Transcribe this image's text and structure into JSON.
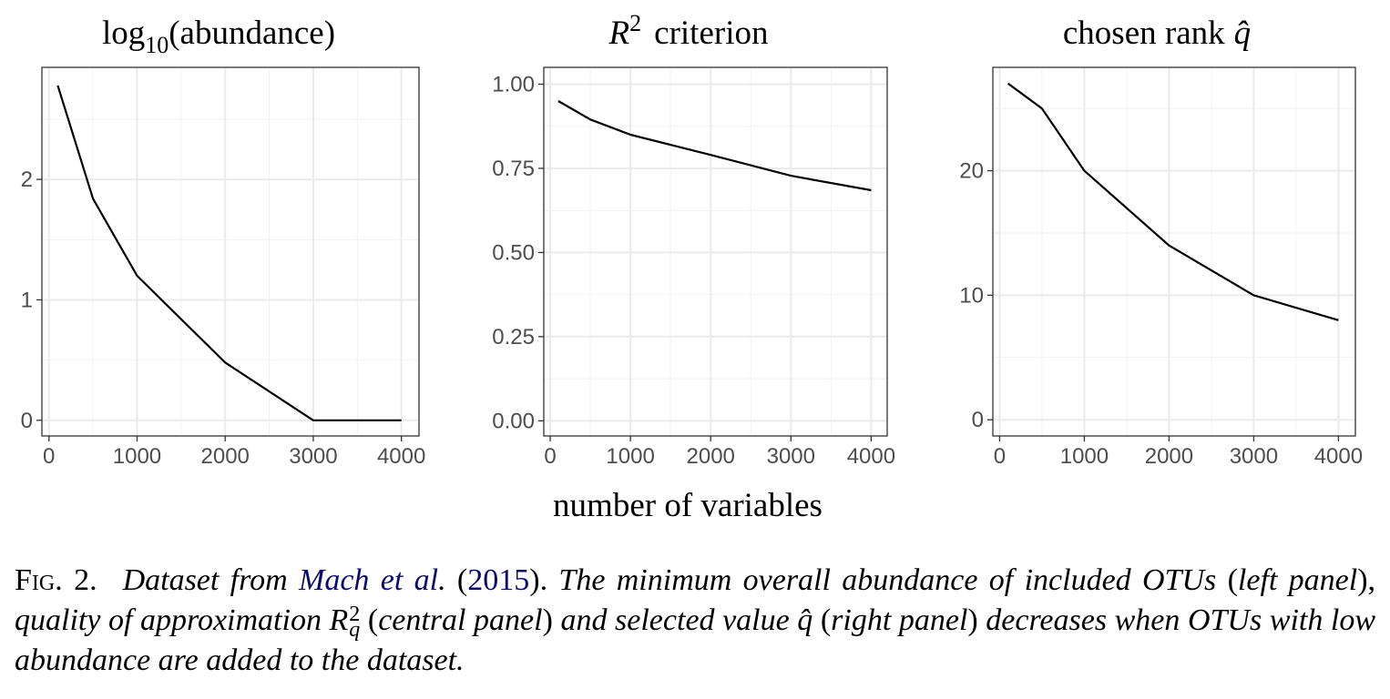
{
  "chart_data": [
    {
      "type": "line",
      "title_parts": {
        "base": "log",
        "sub": "10",
        "rest": "(abundance)"
      },
      "x": [
        100,
        500,
        1000,
        2000,
        3000,
        4000
      ],
      "values": [
        2.78,
        1.84,
        1.2,
        0.48,
        0.0,
        0.0
      ],
      "xlim": [
        -80,
        4200
      ],
      "ylim": [
        -0.13,
        2.93
      ],
      "xticks": [
        "0",
        "1000",
        "2000",
        "3000",
        "4000"
      ],
      "yticks": [
        "0",
        "1",
        "2"
      ],
      "grid": true
    },
    {
      "type": "line",
      "title_parts": {
        "base": "R",
        "sup": "2",
        "rest": "criterion"
      },
      "x": [
        100,
        500,
        1000,
        2000,
        3000,
        4000
      ],
      "values": [
        0.95,
        0.895,
        0.85,
        0.79,
        0.728,
        0.685
      ],
      "xlim": [
        -80,
        4200
      ],
      "ylim": [
        -0.045,
        1.05
      ],
      "xticks": [
        "0",
        "1000",
        "2000",
        "3000",
        "4000"
      ],
      "yticks": [
        "0.00",
        "0.25",
        "0.50",
        "0.75",
        "1.00"
      ],
      "grid": true
    },
    {
      "type": "line",
      "title_parts": {
        "base": "chosen rank",
        "rest": "q̂"
      },
      "x": [
        100,
        500,
        1000,
        2000,
        3000,
        4000
      ],
      "values": [
        27,
        25,
        20,
        14,
        10,
        8
      ],
      "xlim": [
        -80,
        4200
      ],
      "ylim": [
        -1.3,
        28.3
      ],
      "xticks": [
        "0",
        "1000",
        "2000",
        "3000",
        "4000"
      ],
      "yticks": [
        "0",
        "10",
        "20"
      ],
      "grid": true
    }
  ],
  "shared_xlabel": "number of variables",
  "caption": {
    "label": "Fig. 2.",
    "t1": "Dataset from",
    "link1": "Mach et al",
    "t2": ".",
    "p1": "(",
    "link2": "2015",
    "p2": ").",
    "t3": "The minimum overall abundance of included OTUs",
    "p3": "(",
    "t4": "left panel",
    "p4": "),",
    "t5": "quality of approximation",
    "math_base": "R",
    "math_sup": "2",
    "math_sub": "q",
    "p5": "(",
    "t6": "central panel",
    "p6": ")",
    "t7": "and selected value q̂",
    "p7": "(",
    "t8": "right panel",
    "p8": ")",
    "t9": "decreases when OTUs with low abundance are added to the dataset."
  }
}
